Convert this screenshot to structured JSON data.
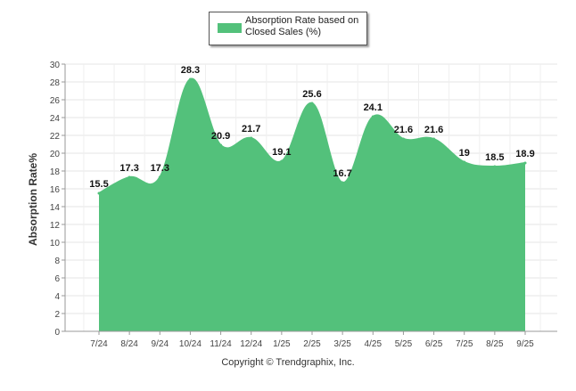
{
  "chart_data": {
    "type": "area",
    "title": "",
    "xlabel": "",
    "ylabel": "Absorption Rate%",
    "ylim": [
      0,
      30
    ],
    "ytick_step": 2,
    "grid": true,
    "legend_position": "top-center",
    "categories": [
      "7/24",
      "8/24",
      "9/24",
      "10/24",
      "11/24",
      "12/24",
      "1/25",
      "2/25",
      "3/25",
      "4/25",
      "5/25",
      "6/25",
      "7/25",
      "8/25",
      "9/25"
    ],
    "series": [
      {
        "name": "Absorption Rate based on Closed Sales (%)",
        "values": [
          15.5,
          17.3,
          17.3,
          28.3,
          20.9,
          21.7,
          19.1,
          25.6,
          16.7,
          24.1,
          21.6,
          21.6,
          19,
          18.5,
          18.9
        ],
        "labels": [
          "15.5",
          "17.3",
          "17.3",
          "28.3",
          "20.9",
          "21.7",
          "19.1",
          "25.6",
          "16.7",
          "24.1",
          "21.6",
          "21.6",
          "19",
          "18.5",
          "18.9"
        ],
        "color": "#53c17b"
      }
    ]
  },
  "legend": {
    "label": "Absorption Rate based on Closed Sales (%)"
  },
  "footer": {
    "copyright": "Copyright © Trendgraphix, Inc."
  }
}
